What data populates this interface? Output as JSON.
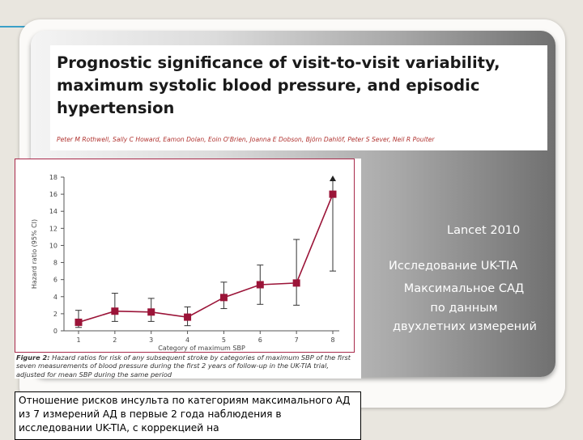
{
  "paper": {
    "title": "Prognostic significance of visit-to-visit variability, maximum systolic blood pressure, and episodic hypertension",
    "authors": "Peter M Rothwell, Sally C Howard, Eamon Dolan, Eoin O'Brien, Joanna E Dobson, Björn Dahlöf, Peter S Sever, Neil R Poulter"
  },
  "side_notes": {
    "journal": "Lancet 2010",
    "study": "Исследование UK-TIA",
    "line1": "Максимальное САД",
    "line2": "по данным",
    "line3": "двухлетних измерений"
  },
  "figure_caption": {
    "label": "Figure 2:",
    "text": " Hazard ratios for risk of any subsequent stroke by categories of maximum SBP of the first seven measurements of blood pressure during the first 2 years of follow-up in the UK-TIA trial, adjusted for mean SBP during the same period"
  },
  "translation_box": "Отношение рисков инсульта по категориям максимального АД из 7 измерений АД в первые 2 года наблюдения в исследовании UK-TIA, с коррекцией на",
  "chart_data": {
    "type": "line",
    "xlabel": "Category of maximum SBP",
    "ylabel": "Hazard ratio (95% CI)",
    "categories": [
      "1",
      "2",
      "3",
      "4",
      "5",
      "6",
      "7",
      "8"
    ],
    "ylim": [
      0,
      18
    ],
    "yticks": [
      "0",
      "2",
      "4",
      "6",
      "8",
      "10",
      "12",
      "14",
      "16",
      "18"
    ],
    "grid": false,
    "series": [
      {
        "values": [
          1.0,
          2.3,
          2.2,
          1.6,
          3.9,
          5.4,
          5.6,
          16.0
        ],
        "lower": [
          0.4,
          1.1,
          1.1,
          0.6,
          2.6,
          3.1,
          3.0,
          7.0
        ],
        "upper": [
          2.4,
          4.4,
          3.8,
          2.8,
          5.7,
          7.7,
          10.7,
          18.0
        ],
        "color": "#9b1438"
      }
    ],
    "upper_arrow_category": "8"
  }
}
